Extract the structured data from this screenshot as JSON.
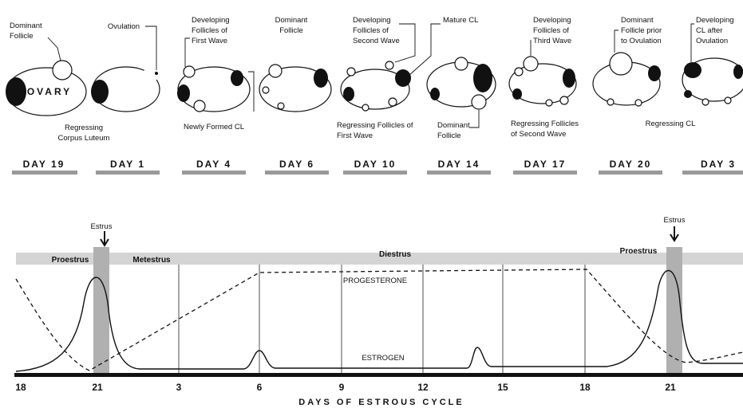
{
  "panels": [
    {
      "day": "DAY 19",
      "notes": [
        [
          "Dominant",
          "Follicle"
        ],
        [
          "OVARY"
        ],
        [
          "Regressing",
          "Corpus Luteum"
        ]
      ]
    },
    {
      "day": "DAY 1",
      "notes": [
        [
          "Ovulation"
        ]
      ]
    },
    {
      "day": "DAY 4",
      "notes": [
        [
          "Developing",
          "Follicles of",
          "First Wave"
        ],
        [
          "Newly Formed CL"
        ]
      ]
    },
    {
      "day": "DAY 6",
      "notes": [
        [
          "Dominant",
          "Follicle"
        ]
      ]
    },
    {
      "day": "DAY 10",
      "notes": [
        [
          "Developing",
          "Follicles of",
          "Second Wave"
        ],
        [
          "Mature CL"
        ],
        [
          "Regressing Follicles of",
          "First Wave"
        ]
      ]
    },
    {
      "day": "DAY 14",
      "notes": [
        [
          "Dominant",
          "Follicle"
        ]
      ]
    },
    {
      "day": "DAY 17",
      "notes": [
        [
          "Developing",
          "Follicles of",
          "Third Wave"
        ],
        [
          "Regressing Follicles",
          "of Second Wave"
        ]
      ]
    },
    {
      "day": "DAY 20",
      "notes": [
        [
          "Dominant",
          "Follicle prior",
          "to Ovulation"
        ],
        [
          "Regressing CL"
        ]
      ]
    },
    {
      "day": "DAY 3",
      "notes": [
        [
          "Developing",
          "CL after",
          "Ovulation"
        ]
      ]
    }
  ],
  "cycle": {
    "phases": [
      "Proestrus",
      "Estrus",
      "Metestrus",
      "Diestrus",
      "Proestrus",
      "Estrus"
    ],
    "curves": [
      "PROGESTERONE",
      "ESTROGEN"
    ],
    "days": [
      "18",
      "21",
      "3",
      "6",
      "9",
      "12",
      "15",
      "18",
      "21"
    ],
    "axis_title": "DAYS OF ESTROUS CYCLE"
  }
}
